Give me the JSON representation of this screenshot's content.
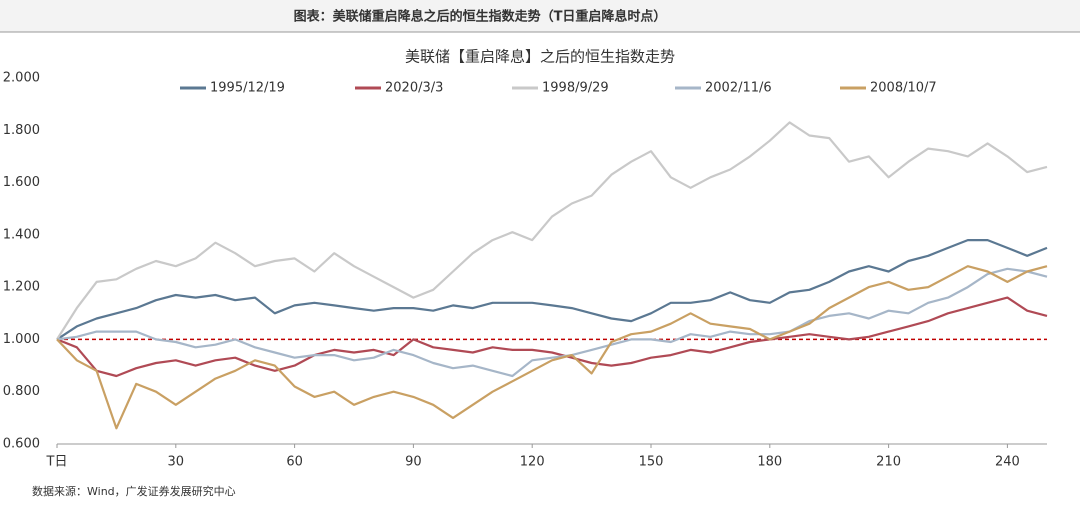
{
  "header": {
    "title": "图表：美联储重启降息之后的恒生指数走势（T日重启降息时点）"
  },
  "chart_data": {
    "type": "line",
    "title": "美联储【重启降息】之后的恒生指数走势",
    "x": [
      0,
      5,
      10,
      15,
      20,
      25,
      30,
      35,
      40,
      45,
      50,
      55,
      60,
      65,
      70,
      75,
      80,
      85,
      90,
      95,
      100,
      105,
      110,
      115,
      120,
      125,
      130,
      135,
      140,
      145,
      150,
      155,
      160,
      165,
      170,
      175,
      180,
      185,
      190,
      195,
      200,
      205,
      210,
      215,
      220,
      225,
      230,
      235,
      240,
      245,
      250
    ],
    "series": [
      {
        "name": "1995/12/19",
        "color": "#5b7892",
        "values": [
          1.0,
          1.05,
          1.08,
          1.1,
          1.12,
          1.15,
          1.17,
          1.16,
          1.17,
          1.15,
          1.16,
          1.1,
          1.13,
          1.14,
          1.13,
          1.12,
          1.11,
          1.12,
          1.12,
          1.11,
          1.13,
          1.12,
          1.14,
          1.14,
          1.14,
          1.13,
          1.12,
          1.1,
          1.08,
          1.07,
          1.1,
          1.14,
          1.14,
          1.15,
          1.18,
          1.15,
          1.14,
          1.18,
          1.19,
          1.22,
          1.26,
          1.28,
          1.26,
          1.3,
          1.32,
          1.35,
          1.38,
          1.38,
          1.35,
          1.32,
          1.35
        ]
      },
      {
        "name": "2020/3/3",
        "color": "#b04a55",
        "values": [
          1.0,
          0.97,
          0.88,
          0.86,
          0.89,
          0.91,
          0.92,
          0.9,
          0.92,
          0.93,
          0.9,
          0.88,
          0.9,
          0.94,
          0.96,
          0.95,
          0.96,
          0.94,
          1.0,
          0.97,
          0.96,
          0.95,
          0.97,
          0.96,
          0.96,
          0.95,
          0.93,
          0.91,
          0.9,
          0.91,
          0.93,
          0.94,
          0.96,
          0.95,
          0.97,
          0.99,
          1.0,
          1.01,
          1.02,
          1.01,
          1.0,
          1.01,
          1.03,
          1.05,
          1.07,
          1.1,
          1.12,
          1.14,
          1.16,
          1.11,
          1.09
        ]
      },
      {
        "name": "1998/9/29",
        "color": "#c9c9c9",
        "values": [
          1.0,
          1.12,
          1.22,
          1.23,
          1.27,
          1.3,
          1.28,
          1.31,
          1.37,
          1.33,
          1.28,
          1.3,
          1.31,
          1.26,
          1.33,
          1.28,
          1.24,
          1.2,
          1.16,
          1.19,
          1.26,
          1.33,
          1.38,
          1.41,
          1.38,
          1.47,
          1.52,
          1.55,
          1.63,
          1.68,
          1.72,
          1.62,
          1.58,
          1.62,
          1.65,
          1.7,
          1.76,
          1.83,
          1.78,
          1.77,
          1.68,
          1.7,
          1.62,
          1.68,
          1.73,
          1.72,
          1.7,
          1.75,
          1.7,
          1.64,
          1.66
        ]
      },
      {
        "name": "2002/11/6",
        "color": "#a6b6c8",
        "values": [
          1.0,
          1.01,
          1.03,
          1.03,
          1.03,
          1.0,
          0.99,
          0.97,
          0.98,
          1.0,
          0.97,
          0.95,
          0.93,
          0.94,
          0.94,
          0.92,
          0.93,
          0.96,
          0.94,
          0.91,
          0.89,
          0.9,
          0.88,
          0.86,
          0.92,
          0.93,
          0.94,
          0.96,
          0.98,
          1.0,
          1.0,
          0.99,
          1.02,
          1.01,
          1.03,
          1.02,
          1.02,
          1.03,
          1.07,
          1.09,
          1.1,
          1.08,
          1.11,
          1.1,
          1.14,
          1.16,
          1.2,
          1.25,
          1.27,
          1.26,
          1.24
        ]
      },
      {
        "name": "2008/10/7",
        "color": "#c9a063",
        "values": [
          1.0,
          0.92,
          0.88,
          0.66,
          0.83,
          0.8,
          0.75,
          0.8,
          0.85,
          0.88,
          0.92,
          0.9,
          0.82,
          0.78,
          0.8,
          0.75,
          0.78,
          0.8,
          0.78,
          0.75,
          0.7,
          0.75,
          0.8,
          0.84,
          0.88,
          0.92,
          0.94,
          0.87,
          0.99,
          1.02,
          1.03,
          1.06,
          1.1,
          1.06,
          1.05,
          1.04,
          1.0,
          1.03,
          1.06,
          1.12,
          1.16,
          1.2,
          1.22,
          1.19,
          1.2,
          1.24,
          1.28,
          1.26,
          1.22,
          1.26,
          1.28
        ]
      }
    ],
    "xlim": [
      0,
      250
    ],
    "xticks": [
      {
        "value": 0,
        "label": "T日"
      },
      30,
      60,
      90,
      120,
      150,
      180,
      210,
      240
    ],
    "ylim": [
      0.6,
      2.0
    ],
    "yticks": [
      {
        "value": 0.6,
        "label": "0.600"
      },
      {
        "value": 0.8,
        "label": "0.800"
      },
      {
        "value": 1.0,
        "label": "1.000"
      },
      {
        "value": 1.2,
        "label": "1.200"
      },
      {
        "value": 1.4,
        "label": "1.400"
      },
      {
        "value": 1.6,
        "label": "1.600"
      },
      {
        "value": 1.8,
        "label": "1.800"
      },
      {
        "value": 2.0,
        "label": "2.000"
      }
    ],
    "reference_line": {
      "value": 1.0,
      "color": "#c00000"
    },
    "grid": false
  },
  "footer": {
    "source": "数据来源：Wind，广发证券发展研究中心"
  }
}
